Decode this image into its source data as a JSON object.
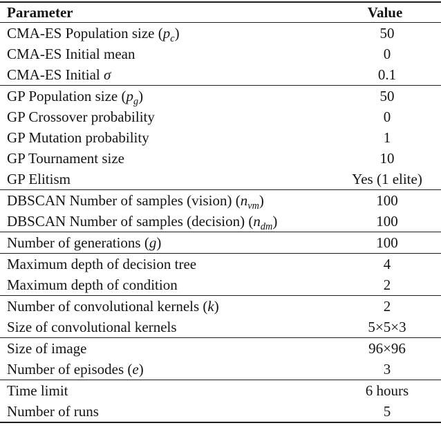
{
  "table": {
    "header": {
      "parameter": "Parameter",
      "value": "Value"
    },
    "rows": [
      {
        "param_text": "CMA-ES Population size (",
        "math_var": "p",
        "math_sub": "c",
        "close_paren": ")",
        "value": "50"
      },
      {
        "param_text": "CMA-ES Initial mean",
        "value": "0"
      },
      {
        "param_text": "CMA-ES Initial ",
        "math_var": "σ",
        "value": "0.1"
      },
      {
        "param_text": "GP Population size (",
        "math_var": "p",
        "math_sub": "g",
        "close_paren": ")",
        "value": "50"
      },
      {
        "param_text": "GP Crossover probability",
        "value": "0"
      },
      {
        "param_text": "GP Mutation probability",
        "value": "1"
      },
      {
        "param_text": "GP Tournament size",
        "value": "10"
      },
      {
        "param_text": "GP Elitism",
        "value": "Yes (1 elite)"
      },
      {
        "param_text": "DBSCAN Number of samples (vision) (",
        "math_var": "n",
        "math_sub": "vm",
        "close_paren": ")",
        "value": "100"
      },
      {
        "param_text": "DBSCAN Number of samples (decision) (",
        "math_var": "n",
        "math_sub": "dm",
        "close_paren": ")",
        "value": "100"
      },
      {
        "param_text": "Number of generations (",
        "math_var": "g",
        "close_paren": ")",
        "value": "100"
      },
      {
        "param_text": "Maximum depth of decision tree",
        "value": "4"
      },
      {
        "param_text": "Maximum depth of condition",
        "value": "2"
      },
      {
        "param_text": "Number of convolutional kernels (",
        "math_var": "k",
        "close_paren": ")",
        "value": "2"
      },
      {
        "param_text": "Size of convolutional kernels",
        "value": "5×5×3"
      },
      {
        "param_text": "Size of image",
        "value": "96×96"
      },
      {
        "param_text": "Number of episodes (",
        "math_var": "e",
        "close_paren": ")",
        "value": "3"
      },
      {
        "param_text": "Time limit",
        "value": "6 hours"
      },
      {
        "param_text": "Number of runs",
        "value": "5"
      }
    ],
    "group_start_rows": [
      3,
      8,
      10,
      11,
      13,
      15,
      17
    ]
  },
  "colors": {
    "rule": "#1c1c1c",
    "text": "#141414",
    "background": "#ffffff"
  }
}
